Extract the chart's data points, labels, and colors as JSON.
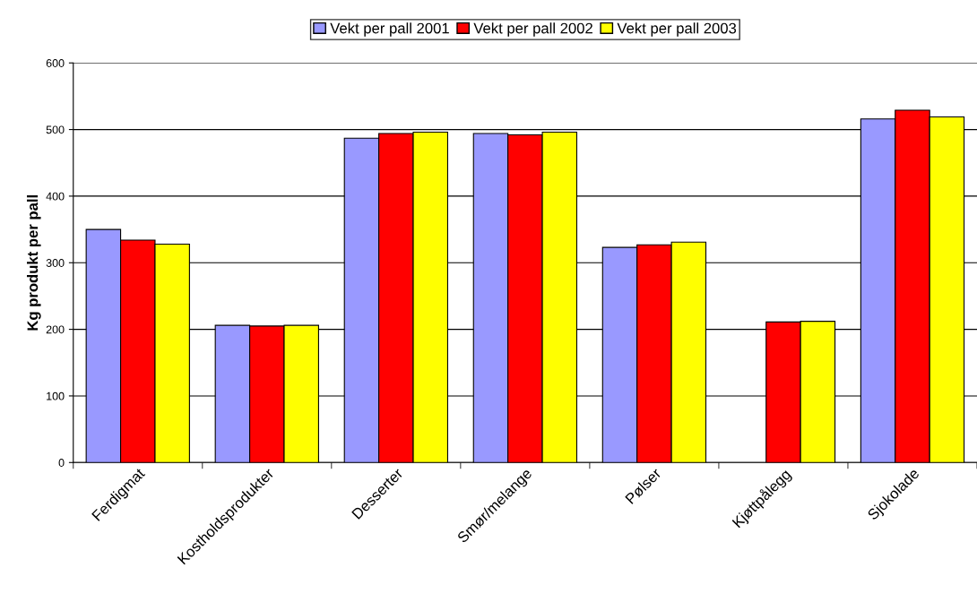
{
  "chart_data": {
    "type": "bar",
    "ylabel": "Kg produkt per pall",
    "categories": [
      "Ferdigmat",
      "Kostholdsprodukter",
      "Desserter",
      "Smør/melange",
      "Pølser",
      "Kjøttpålegg",
      "Sjokolade"
    ],
    "series": [
      {
        "name": "Vekt per pall 2001",
        "color": "#9999ff",
        "values": [
          350,
          206,
          487,
          494,
          323,
          null,
          516
        ]
      },
      {
        "name": "Vekt per pall 2002",
        "color": "#ff0000",
        "values": [
          334,
          205,
          494,
          492,
          327,
          211,
          529
        ]
      },
      {
        "name": "Vekt per pall 2003",
        "color": "#ffff00",
        "values": [
          328,
          206,
          496,
          496,
          331,
          212,
          519
        ]
      }
    ],
    "ylim": [
      0,
      600
    ],
    "yticks": [
      0,
      100,
      200,
      300,
      400,
      500,
      600
    ],
    "grid": "y",
    "legend": "top"
  }
}
